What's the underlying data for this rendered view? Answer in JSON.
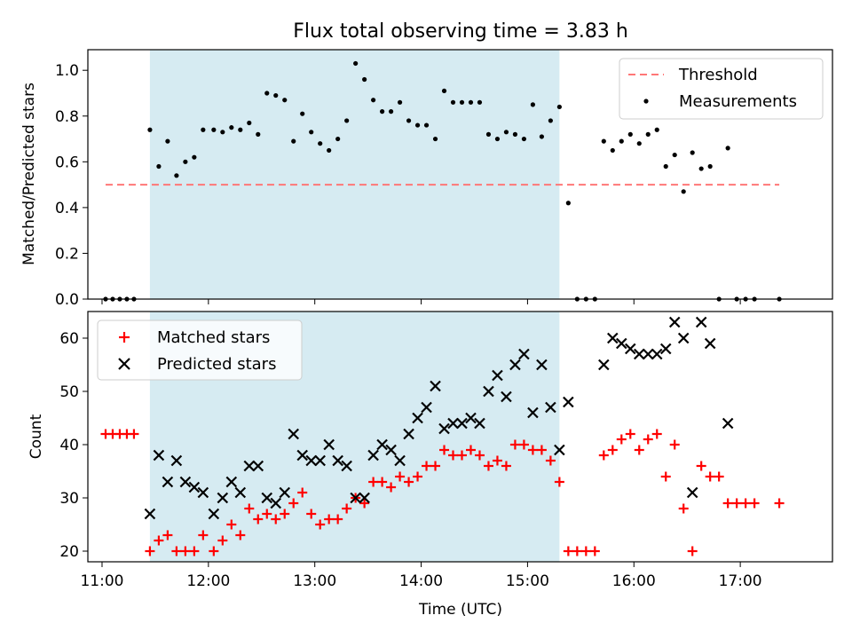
{
  "title": "Flux total observing time = 3.83 h",
  "colors": {
    "band": "#add8e6",
    "threshold": "#ff7777",
    "measurement": "#000000",
    "matched": "#ff0000",
    "predicted": "#000000"
  },
  "chart_data": [
    {
      "type": "scatter",
      "panel": "top",
      "ylabel": "Matched/Predicted stars",
      "xlabel": "",
      "x_axis_type": "time",
      "xlim": [
        "10:52",
        "17:52"
      ],
      "ylim": [
        0,
        1.09
      ],
      "yticks": [
        0.0,
        0.2,
        0.4,
        0.6,
        0.8,
        1.0
      ],
      "ytick_labels": [
        "0.0",
        "0.2",
        "0.4",
        "0.6",
        "0.8",
        "1.0"
      ],
      "xticks": [
        "11:00",
        "12:00",
        "13:00",
        "14:00",
        "15:00",
        "16:00",
        "17:00"
      ],
      "legend_position": "top-right",
      "band": {
        "from": "11:27",
        "to": "15:18"
      },
      "threshold": {
        "name": "Threshold",
        "value": 0.5,
        "from": "11:02",
        "to": "17:22"
      },
      "series": [
        {
          "name": "Measurements",
          "points": [
            [
              "11:02",
              0.0
            ],
            [
              "11:06",
              0.0
            ],
            [
              "11:10",
              0.0
            ],
            [
              "11:14",
              0.0
            ],
            [
              "11:18",
              0.0
            ],
            [
              "11:27",
              0.74
            ],
            [
              "11:32",
              0.58
            ],
            [
              "11:37",
              0.69
            ],
            [
              "11:42",
              0.54
            ],
            [
              "11:47",
              0.6
            ],
            [
              "11:52",
              0.62
            ],
            [
              "11:57",
              0.74
            ],
            [
              "12:03",
              0.74
            ],
            [
              "12:08",
              0.73
            ],
            [
              "12:13",
              0.75
            ],
            [
              "12:18",
              0.74
            ],
            [
              "12:23",
              0.77
            ],
            [
              "12:28",
              0.72
            ],
            [
              "12:33",
              0.9
            ],
            [
              "12:38",
              0.89
            ],
            [
              "12:43",
              0.87
            ],
            [
              "12:48",
              0.69
            ],
            [
              "12:53",
              0.81
            ],
            [
              "12:58",
              0.73
            ],
            [
              "13:03",
              0.68
            ],
            [
              "13:08",
              0.65
            ],
            [
              "13:13",
              0.7
            ],
            [
              "13:18",
              0.78
            ],
            [
              "13:23",
              1.03
            ],
            [
              "13:28",
              0.96
            ],
            [
              "13:33",
              0.87
            ],
            [
              "13:38",
              0.82
            ],
            [
              "13:43",
              0.82
            ],
            [
              "13:48",
              0.86
            ],
            [
              "13:53",
              0.78
            ],
            [
              "13:58",
              0.76
            ],
            [
              "14:03",
              0.76
            ],
            [
              "14:08",
              0.7
            ],
            [
              "14:13",
              0.91
            ],
            [
              "14:18",
              0.86
            ],
            [
              "14:23",
              0.86
            ],
            [
              "14:28",
              0.86
            ],
            [
              "14:33",
              0.86
            ],
            [
              "14:38",
              0.72
            ],
            [
              "14:43",
              0.7
            ],
            [
              "14:48",
              0.73
            ],
            [
              "14:53",
              0.72
            ],
            [
              "14:58",
              0.7
            ],
            [
              "15:03",
              0.85
            ],
            [
              "15:08",
              0.71
            ],
            [
              "15:13",
              0.78
            ],
            [
              "15:18",
              0.84
            ],
            [
              "15:23",
              0.42
            ],
            [
              "15:28",
              0.0
            ],
            [
              "15:33",
              0.0
            ],
            [
              "15:38",
              0.0
            ],
            [
              "15:43",
              0.69
            ],
            [
              "15:48",
              0.65
            ],
            [
              "15:53",
              0.69
            ],
            [
              "15:58",
              0.72
            ],
            [
              "16:03",
              0.68
            ],
            [
              "16:08",
              0.72
            ],
            [
              "16:13",
              0.74
            ],
            [
              "16:18",
              0.58
            ],
            [
              "16:23",
              0.63
            ],
            [
              "16:28",
              0.47
            ],
            [
              "16:33",
              0.64
            ],
            [
              "16:38",
              0.57
            ],
            [
              "16:43",
              0.58
            ],
            [
              "16:48",
              0.0
            ],
            [
              "16:53",
              0.66
            ],
            [
              "16:58",
              0.0
            ],
            [
              "17:03",
              0.0
            ],
            [
              "17:08",
              0.0
            ],
            [
              "17:22",
              0.0
            ]
          ]
        }
      ]
    },
    {
      "type": "scatter",
      "panel": "bottom",
      "ylabel": "Count",
      "xlabel": "Time (UTC)",
      "x_axis_type": "time",
      "xlim": [
        "10:52",
        "17:52"
      ],
      "ylim": [
        18,
        65
      ],
      "yticks": [
        20,
        30,
        40,
        50,
        60
      ],
      "ytick_labels": [
        "20",
        "30",
        "40",
        "50",
        "60"
      ],
      "xticks": [
        "11:00",
        "12:00",
        "13:00",
        "14:00",
        "15:00",
        "16:00",
        "17:00"
      ],
      "xtick_labels": [
        "11:00",
        "12:00",
        "13:00",
        "14:00",
        "15:00",
        "16:00",
        "17:00"
      ],
      "legend_position": "top-left",
      "band": {
        "from": "11:27",
        "to": "15:18"
      },
      "series": [
        {
          "name": "Matched stars",
          "marker": "plus",
          "points": [
            [
              "11:02",
              42
            ],
            [
              "11:06",
              42
            ],
            [
              "11:10",
              42
            ],
            [
              "11:14",
              42
            ],
            [
              "11:18",
              42
            ],
            [
              "11:27",
              20
            ],
            [
              "11:32",
              22
            ],
            [
              "11:37",
              23
            ],
            [
              "11:42",
              20
            ],
            [
              "11:47",
              20
            ],
            [
              "11:52",
              20
            ],
            [
              "11:57",
              23
            ],
            [
              "12:03",
              20
            ],
            [
              "12:08",
              22
            ],
            [
              "12:13",
              25
            ],
            [
              "12:18",
              23
            ],
            [
              "12:23",
              28
            ],
            [
              "12:28",
              26
            ],
            [
              "12:33",
              27
            ],
            [
              "12:38",
              26
            ],
            [
              "12:43",
              27
            ],
            [
              "12:48",
              29
            ],
            [
              "12:53",
              31
            ],
            [
              "12:58",
              27
            ],
            [
              "13:03",
              25
            ],
            [
              "13:08",
              26
            ],
            [
              "13:13",
              26
            ],
            [
              "13:18",
              28
            ],
            [
              "13:23",
              30
            ],
            [
              "13:28",
              29
            ],
            [
              "13:33",
              33
            ],
            [
              "13:38",
              33
            ],
            [
              "13:43",
              32
            ],
            [
              "13:48",
              34
            ],
            [
              "13:53",
              33
            ],
            [
              "13:58",
              34
            ],
            [
              "14:03",
              36
            ],
            [
              "14:08",
              36
            ],
            [
              "14:13",
              39
            ],
            [
              "14:18",
              38
            ],
            [
              "14:23",
              38
            ],
            [
              "14:28",
              39
            ],
            [
              "14:33",
              38
            ],
            [
              "14:38",
              36
            ],
            [
              "14:43",
              37
            ],
            [
              "14:48",
              36
            ],
            [
              "14:53",
              40
            ],
            [
              "14:58",
              40
            ],
            [
              "15:03",
              39
            ],
            [
              "15:08",
              39
            ],
            [
              "15:13",
              37
            ],
            [
              "15:18",
              33
            ],
            [
              "15:23",
              20
            ],
            [
              "15:28",
              20
            ],
            [
              "15:33",
              20
            ],
            [
              "15:38",
              20
            ],
            [
              "15:43",
              38
            ],
            [
              "15:48",
              39
            ],
            [
              "15:53",
              41
            ],
            [
              "15:58",
              42
            ],
            [
              "16:03",
              39
            ],
            [
              "16:08",
              41
            ],
            [
              "16:13",
              42
            ],
            [
              "16:18",
              34
            ],
            [
              "16:23",
              40
            ],
            [
              "16:28",
              28
            ],
            [
              "16:33",
              20
            ],
            [
              "16:38",
              36
            ],
            [
              "16:43",
              34
            ],
            [
              "16:48",
              34
            ],
            [
              "16:53",
              29
            ],
            [
              "16:58",
              29
            ],
            [
              "17:03",
              29
            ],
            [
              "17:08",
              29
            ],
            [
              "17:22",
              29
            ]
          ]
        },
        {
          "name": "Predicted stars",
          "marker": "x",
          "points": [
            [
              "11:27",
              27
            ],
            [
              "11:32",
              38
            ],
            [
              "11:37",
              33
            ],
            [
              "11:42",
              37
            ],
            [
              "11:47",
              33
            ],
            [
              "11:52",
              32
            ],
            [
              "11:57",
              31
            ],
            [
              "12:03",
              27
            ],
            [
              "12:08",
              30
            ],
            [
              "12:13",
              33
            ],
            [
              "12:18",
              31
            ],
            [
              "12:23",
              36
            ],
            [
              "12:28",
              36
            ],
            [
              "12:33",
              30
            ],
            [
              "12:38",
              29
            ],
            [
              "12:43",
              31
            ],
            [
              "12:48",
              42
            ],
            [
              "12:53",
              38
            ],
            [
              "12:58",
              37
            ],
            [
              "13:03",
              37
            ],
            [
              "13:08",
              40
            ],
            [
              "13:13",
              37
            ],
            [
              "13:18",
              36
            ],
            [
              "13:23",
              30
            ],
            [
              "13:28",
              30
            ],
            [
              "13:33",
              38
            ],
            [
              "13:38",
              40
            ],
            [
              "13:43",
              39
            ],
            [
              "13:48",
              37
            ],
            [
              "13:53",
              42
            ],
            [
              "13:58",
              45
            ],
            [
              "14:03",
              47
            ],
            [
              "14:08",
              51
            ],
            [
              "14:13",
              43
            ],
            [
              "14:18",
              44
            ],
            [
              "14:23",
              44
            ],
            [
              "14:28",
              45
            ],
            [
              "14:33",
              44
            ],
            [
              "14:38",
              50
            ],
            [
              "14:43",
              53
            ],
            [
              "14:48",
              49
            ],
            [
              "14:53",
              55
            ],
            [
              "14:58",
              57
            ],
            [
              "15:03",
              46
            ],
            [
              "15:08",
              55
            ],
            [
              "15:13",
              47
            ],
            [
              "15:18",
              39
            ],
            [
              "15:23",
              48
            ],
            [
              "15:43",
              55
            ],
            [
              "15:48",
              60
            ],
            [
              "15:53",
              59
            ],
            [
              "15:58",
              58
            ],
            [
              "16:03",
              57
            ],
            [
              "16:08",
              57
            ],
            [
              "16:13",
              57
            ],
            [
              "16:18",
              58
            ],
            [
              "16:23",
              63
            ],
            [
              "16:28",
              60
            ],
            [
              "16:33",
              31
            ],
            [
              "16:38",
              63
            ],
            [
              "16:43",
              59
            ],
            [
              "16:53",
              44
            ]
          ]
        }
      ]
    }
  ]
}
